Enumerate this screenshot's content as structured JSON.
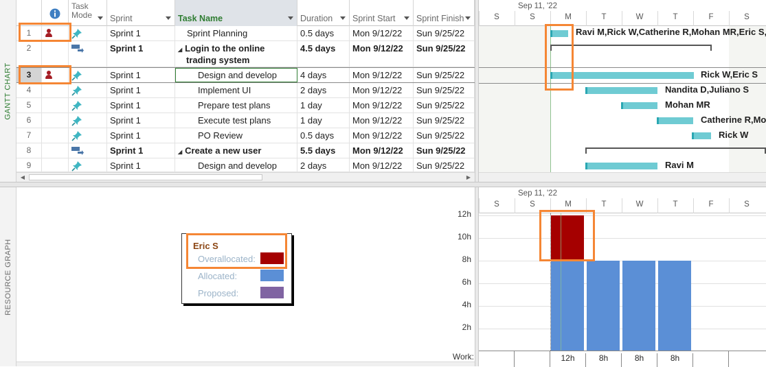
{
  "views": {
    "top_label": "GANTT CHART",
    "bottom_label": "RESOURCE GRAPH"
  },
  "columns": {
    "task_mode": "Task Mode",
    "sprint": "Sprint",
    "task_name": "Task Name",
    "duration": "Duration",
    "sprint_start": "Sprint Start",
    "sprint_finish": "Sprint Finish"
  },
  "tasks": [
    {
      "num": "1",
      "sprint": "Sprint 1",
      "name": "Sprint Planning",
      "duration": "0.5 days",
      "start": "Mon 9/12/22",
      "finish": "Sun 9/25/22",
      "summary": false,
      "mode": "pin-icon",
      "resource_icon": true
    },
    {
      "num": "2",
      "sprint": "Sprint 1",
      "name": "Login to the online",
      "name2": "trading system",
      "duration": "4.5 days",
      "start": "Mon 9/12/22",
      "finish": "Sun 9/25/22",
      "summary": true,
      "mode": "summary-icon",
      "resource_icon": false
    },
    {
      "num": "3",
      "sprint": "Sprint 1",
      "name": "Design and develop",
      "duration": "4 days",
      "start": "Mon 9/12/22",
      "finish": "Sun 9/25/22",
      "summary": false,
      "mode": "pin-icon",
      "resource_icon": true
    },
    {
      "num": "4",
      "sprint": "Sprint 1",
      "name": "Implement UI",
      "duration": "2 days",
      "start": "Mon 9/12/22",
      "finish": "Sun 9/25/22",
      "summary": false,
      "mode": "pin-icon",
      "resource_icon": false
    },
    {
      "num": "5",
      "sprint": "Sprint 1",
      "name": "Prepare test plans",
      "duration": "1 day",
      "start": "Mon 9/12/22",
      "finish": "Sun 9/25/22",
      "summary": false,
      "mode": "pin-icon",
      "resource_icon": false
    },
    {
      "num": "6",
      "sprint": "Sprint 1",
      "name": "Execute test plans",
      "duration": "1 day",
      "start": "Mon 9/12/22",
      "finish": "Sun 9/25/22",
      "summary": false,
      "mode": "pin-icon",
      "resource_icon": false
    },
    {
      "num": "7",
      "sprint": "Sprint 1",
      "name": "PO Review",
      "duration": "0.5 days",
      "start": "Mon 9/12/22",
      "finish": "Sun 9/25/22",
      "summary": false,
      "mode": "pin-icon",
      "resource_icon": false
    },
    {
      "num": "8",
      "sprint": "Sprint 1",
      "name": "Create a new user",
      "duration": "5.5 days",
      "start": "Mon 9/12/22",
      "finish": "Sun 9/25/22",
      "summary": true,
      "mode": "summary-icon",
      "resource_icon": false
    },
    {
      "num": "9",
      "sprint": "Sprint 1",
      "name": "Design and develop",
      "duration": "2 days",
      "start": "Mon 9/12/22",
      "finish": "Sun 9/25/22",
      "summary": false,
      "mode": "pin-icon",
      "resource_icon": false
    }
  ],
  "timeline": {
    "week_label": "Sep 11, '22",
    "days": [
      "S",
      "S",
      "M",
      "T",
      "W",
      "T",
      "F",
      "S"
    ]
  },
  "gantt_labels": [
    "Ravi M,Rick W,Catherine R,Mohan MR,Eric S,",
    "Rick W,Eric S",
    "Nandita D,Juliano S",
    "Mohan MR",
    "Catherine R,Mo",
    "Rick W",
    "Ravi M"
  ],
  "resource_graph": {
    "y_ticks": [
      "12h",
      "10h",
      "8h",
      "6h",
      "4h",
      "2h"
    ],
    "work_label": "Work:",
    "work_values": [
      "12h",
      "8h",
      "8h",
      "8h"
    ],
    "legend": {
      "resource": "Eric S",
      "overallocated": "Overallocated:",
      "allocated": "Allocated:",
      "proposed": "Proposed:",
      "colors": {
        "overallocated": "#a50000",
        "allocated": "#5b8fd6",
        "proposed": "#8064a2"
      }
    }
  }
}
